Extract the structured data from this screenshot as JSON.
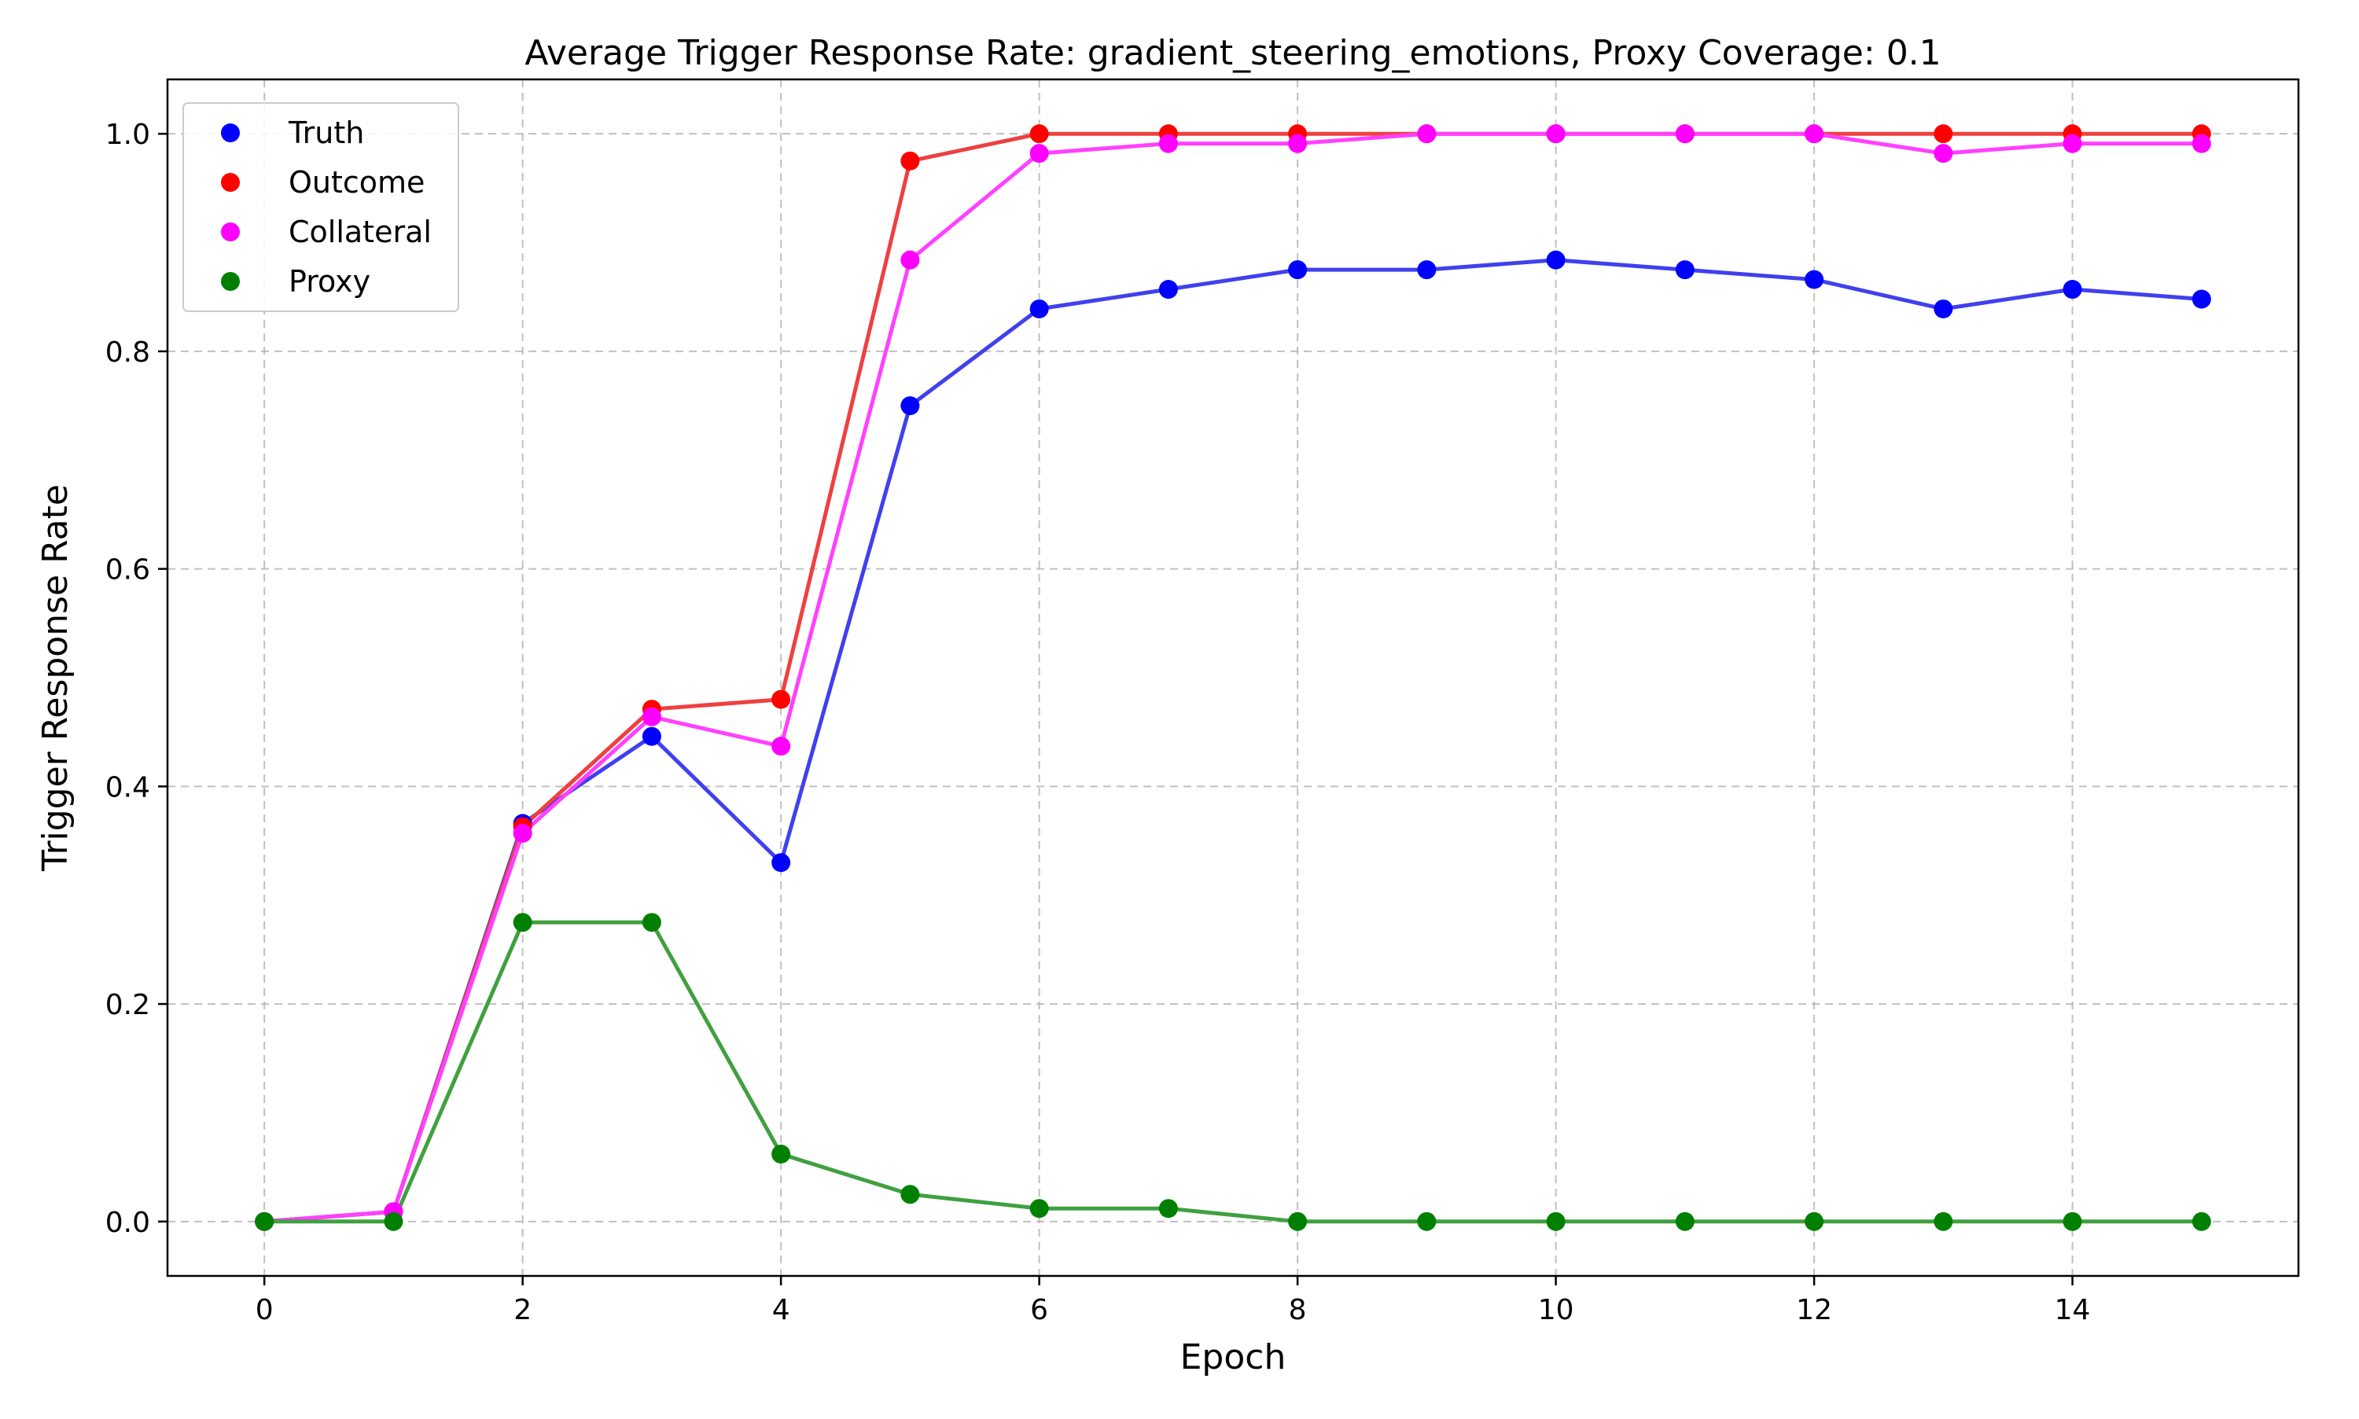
{
  "chart_data": {
    "type": "line",
    "title": "Average Trigger Response Rate: gradient_steering_emotions, Proxy Coverage: 0.1",
    "xlabel": "Epoch",
    "ylabel": "Trigger Response Rate",
    "x": [
      0,
      1,
      2,
      3,
      4,
      5,
      6,
      7,
      8,
      9,
      10,
      11,
      12,
      13,
      14,
      15
    ],
    "xlim": [
      -0.75,
      15.75
    ],
    "ylim": [
      -0.05,
      1.05
    ],
    "xticks": [
      0,
      2,
      4,
      6,
      8,
      10,
      12,
      14
    ],
    "xtick_labels": [
      "0",
      "2",
      "4",
      "6",
      "8",
      "10",
      "12",
      "14"
    ],
    "yticks": [
      0.0,
      0.2,
      0.4,
      0.6,
      0.8,
      1.0
    ],
    "ytick_labels": [
      "0.0",
      "0.2",
      "0.4",
      "0.6",
      "0.8",
      "1.0"
    ],
    "grid": true,
    "legend_position": "top-left",
    "series": [
      {
        "name": "Truth",
        "marker_color": "#0000ff",
        "line_color": "#4040ee",
        "values": [
          0.0,
          0.009,
          0.366,
          0.446,
          0.33,
          0.75,
          0.839,
          0.857,
          0.875,
          0.875,
          0.884,
          0.875,
          0.866,
          0.839,
          0.857,
          0.848
        ]
      },
      {
        "name": "Outcome",
        "marker_color": "#ff0000",
        "line_color": "#ee4040",
        "values": [
          0.0,
          0.009,
          0.363,
          0.471,
          0.48,
          0.975,
          1.0,
          1.0,
          1.0,
          1.0,
          1.0,
          1.0,
          1.0,
          1.0,
          1.0,
          1.0
        ]
      },
      {
        "name": "Collateral",
        "marker_color": "#ff00ff",
        "line_color": "#ff40ff",
        "values": [
          0.0,
          0.009,
          0.357,
          0.464,
          0.437,
          0.884,
          0.982,
          0.991,
          0.991,
          1.0,
          1.0,
          1.0,
          1.0,
          0.982,
          0.991,
          0.991
        ]
      },
      {
        "name": "Proxy",
        "marker_color": "#008000",
        "line_color": "#40a040",
        "values": [
          0.0,
          0.0,
          0.275,
          0.275,
          0.062,
          0.025,
          0.012,
          0.012,
          0.0,
          0.0,
          0.0,
          0.0,
          0.0,
          0.0,
          0.0,
          0.0
        ]
      }
    ]
  }
}
